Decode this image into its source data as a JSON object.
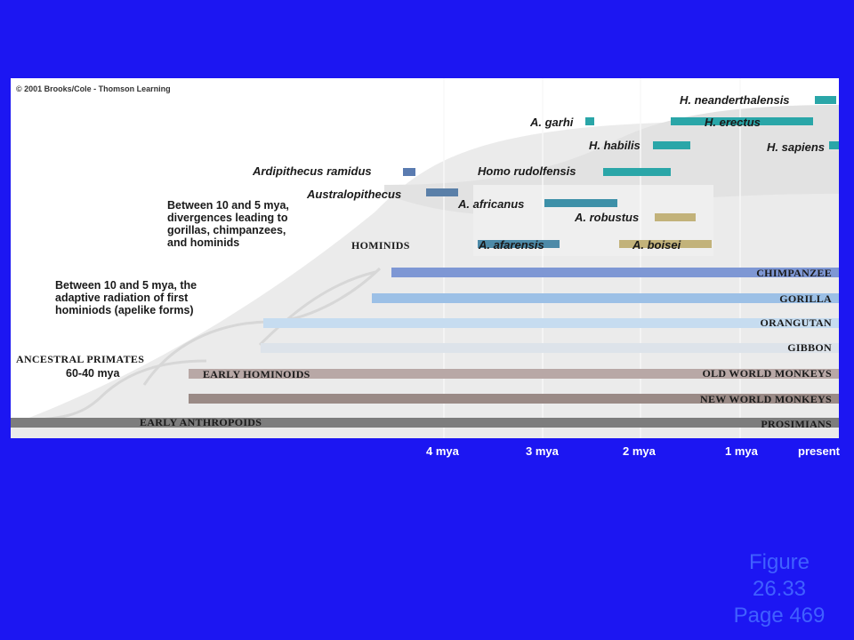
{
  "copyright": "© 2001 Brooks/Cole - Thomson Learning",
  "species": {
    "neanderthalensis": "H. neanderthalensis",
    "garhi": "A. garhi",
    "erectus": "H. erectus",
    "habilis": "H. habilis",
    "sapiens": "H. sapiens",
    "ramidus": "Ardipithecus ramidus",
    "rudolfensis": "Homo rudolfensis",
    "australopithecus": "Australopithecus",
    "africanus": "A. africanus",
    "robustus": "A. robustus",
    "afarensis": "A. afarensis",
    "boisei": "A. boisei"
  },
  "notes": {
    "divergence_line1": "Between 10 and 5 mya,",
    "divergence_line2": "divergences leading to",
    "divergence_line3": "gorillas, chimpanzees,",
    "divergence_line4": "and hominids",
    "radiation_line1": "Between 10 and 5 mya, the",
    "radiation_line2": "adaptive radiation of first",
    "radiation_line3": "hominiods (apelike forms)",
    "ancestral": "ANCESTRAL PRIMATES",
    "ancestral_date": "60-40 mya",
    "hominids": "HOMINIDS",
    "early_hominoids": "EARLY HOMINOIDS",
    "early_anthropoids": "EARLY ANTHROPOIDS"
  },
  "lineages": {
    "chimpanzee": "CHIMPANZEE",
    "gorilla": "GORILLA",
    "orangutan": "ORANGUTAN",
    "gibbon": "GIBBON",
    "old_world": "OLD WORLD MONKEYS",
    "new_world": "NEW WORLD MONKEYS",
    "prosimians": "PROSIMIANS"
  },
  "axis": {
    "t4": "4 mya",
    "t3": "3 mya",
    "t2": "2 mya",
    "t1": "1 mya",
    "t0": "present"
  },
  "caption": {
    "line1": "Figure",
    "line2": "26.33",
    "line3": "Page 469"
  },
  "colors": {
    "background": "#1c16f2",
    "teal": "#2aa6a8",
    "chimpanzee": "#7e97d4",
    "gorilla": "#9cc0e6",
    "orangutan": "#c6dcf0",
    "gibbon": "#dde3ea",
    "old_world": "#b8a8a6",
    "new_world": "#9a8a86",
    "prosimians": "#7d7d7d"
  }
}
